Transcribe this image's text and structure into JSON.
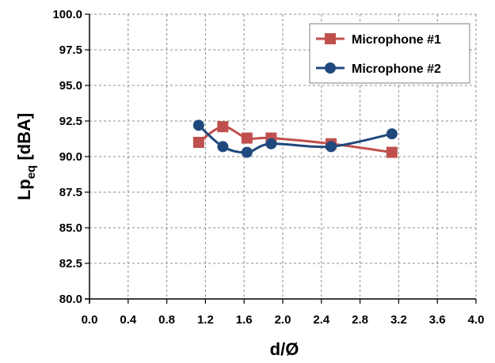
{
  "chart_data": {
    "type": "line",
    "xlabel": "d/Ø",
    "ylabel_main": "Lp",
    "ylabel_sub": "eq",
    "ylabel_unit": " [dBA]",
    "xlim": [
      0.0,
      4.0
    ],
    "ylim": [
      80.0,
      100.0
    ],
    "xticks": [
      "0.0",
      "0.4",
      "0.8",
      "1.2",
      "1.6",
      "2.0",
      "2.4",
      "2.8",
      "3.2",
      "3.6",
      "4.0"
    ],
    "yticks": [
      "80.0",
      "82.5",
      "85.0",
      "87.5",
      "90.0",
      "92.5",
      "95.0",
      "97.5",
      "100.0"
    ],
    "grid": true,
    "legend_position": "top-right",
    "series": [
      {
        "name": "Microphone #1",
        "color": "#c0504d",
        "marker": "square",
        "x": [
          1.13,
          1.38,
          1.63,
          1.88,
          2.5,
          3.13
        ],
        "y": [
          91.0,
          92.1,
          91.3,
          91.3,
          90.9,
          90.3
        ]
      },
      {
        "name": "Microphone #2",
        "color": "#1f497d",
        "marker": "circle",
        "x": [
          1.13,
          1.38,
          1.63,
          1.88,
          2.5,
          3.13
        ],
        "y": [
          92.2,
          90.7,
          90.3,
          90.9,
          90.7,
          91.6
        ]
      }
    ]
  }
}
